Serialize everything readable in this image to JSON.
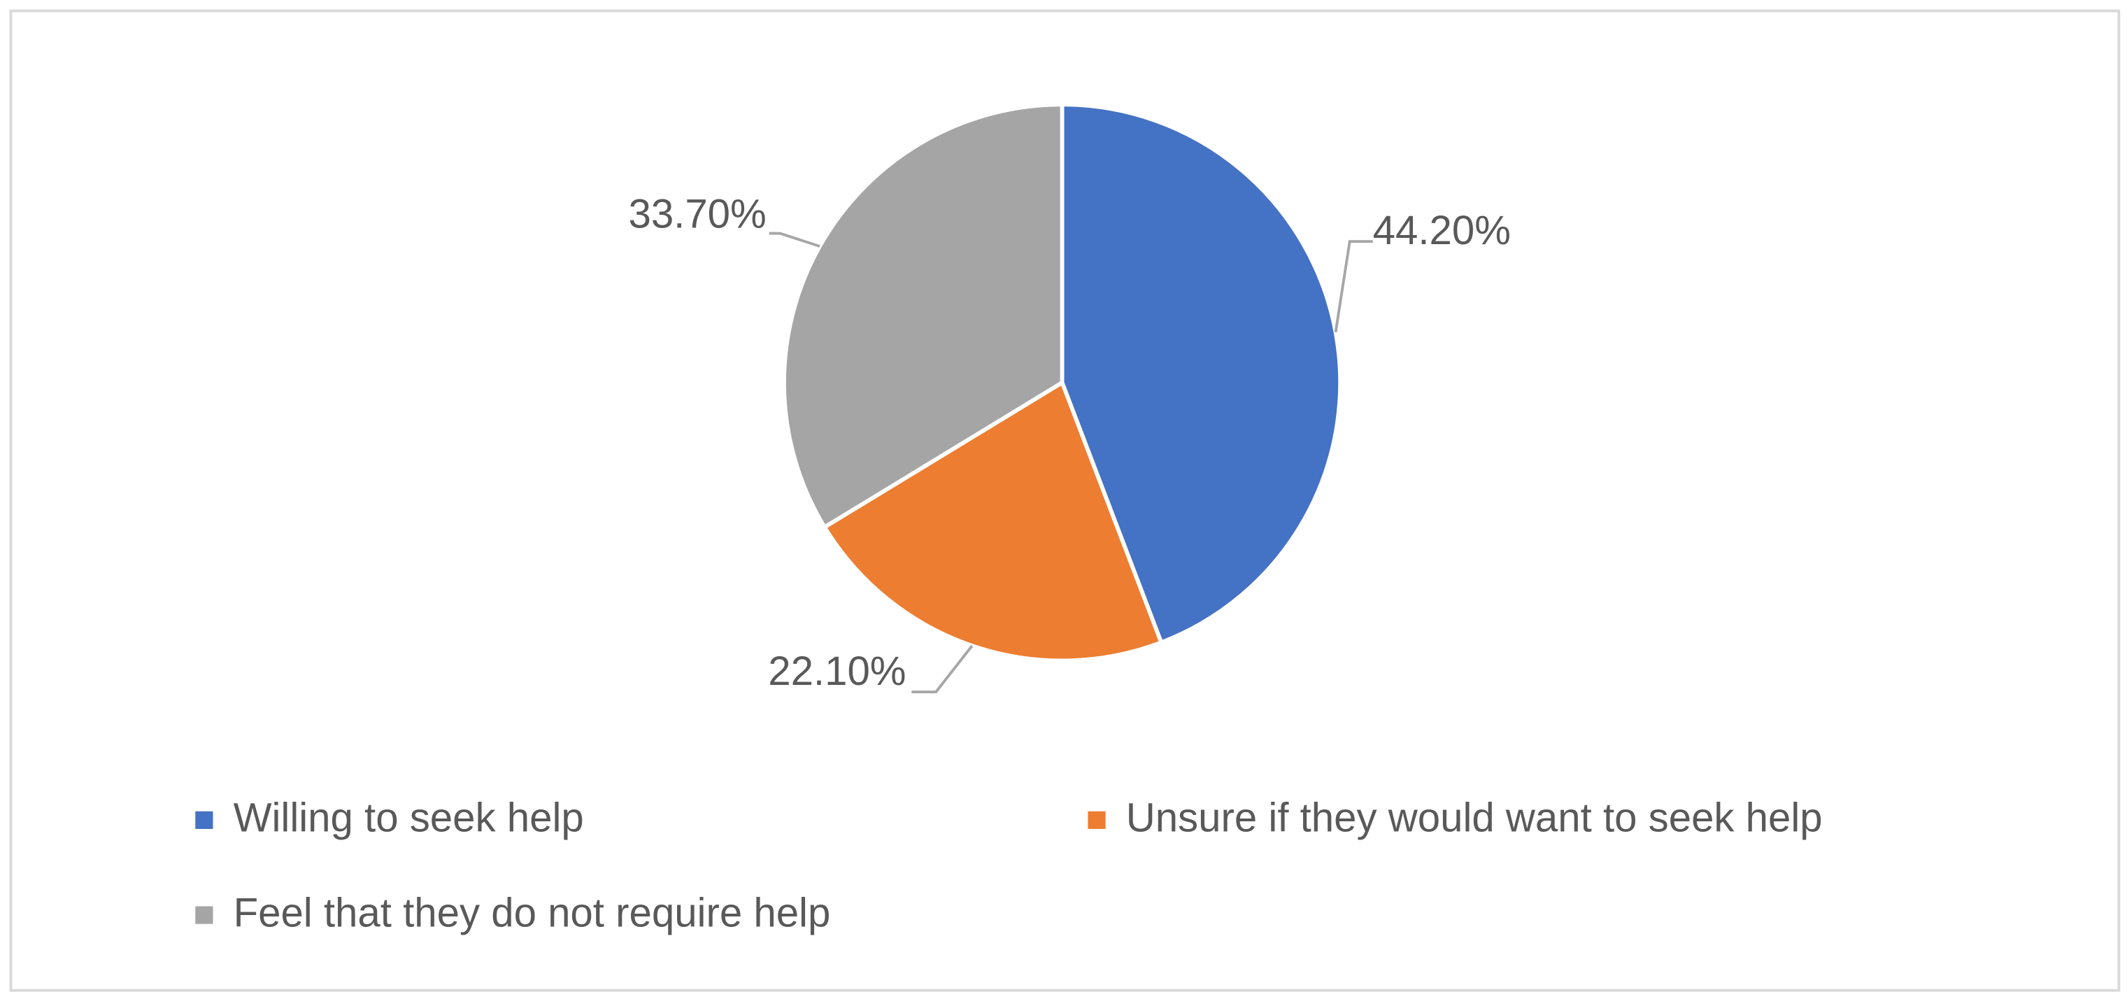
{
  "chart_data": {
    "type": "pie",
    "categories": [
      "Willing to seek help",
      "Unsure if they would want to seek help",
      "Feel that they do not require help"
    ],
    "values": [
      44.2,
      22.1,
      33.7
    ],
    "value_labels": [
      "44.20%",
      "22.10%",
      "33.70%"
    ],
    "colors": [
      "#4472c4",
      "#ed7d31",
      "#a5a5a5"
    ],
    "legend": "bottom"
  }
}
